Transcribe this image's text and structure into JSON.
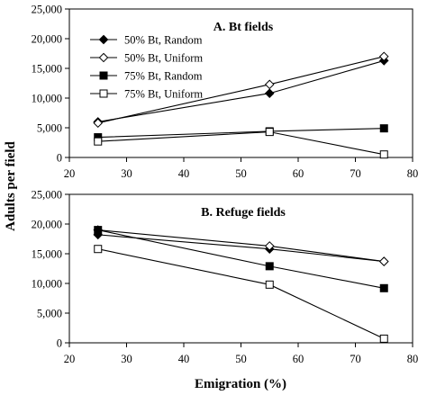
{
  "figure": {
    "ylabel": "Adults per field",
    "xlabel": "Emigration (%)"
  },
  "chart_data": [
    {
      "type": "line",
      "title": "A. Bt fields",
      "xlabel": "Emigration (%)",
      "ylabel": "Adults per field",
      "xlim": [
        20,
        80
      ],
      "ylim": [
        0,
        25000
      ],
      "x_ticks": [
        "20",
        "30",
        "40",
        "50",
        "60",
        "70",
        "80"
      ],
      "y_ticks": [
        "0",
        "5,000",
        "10,000",
        "15,000",
        "20,000",
        "25,000"
      ],
      "grid": false,
      "legend_position": "top-left",
      "x": [
        25,
        55,
        75
      ],
      "series": [
        {
          "name": "50% Bt, Random",
          "marker": "filled-diamond",
          "values": [
            6000,
            10800,
            16300
          ]
        },
        {
          "name": "50% Bt, Uniform",
          "marker": "open-diamond",
          "values": [
            5800,
            12300,
            17000
          ]
        },
        {
          "name": "75% Bt, Random",
          "marker": "filled-square",
          "values": [
            3400,
            4400,
            4900
          ]
        },
        {
          "name": "75% Bt, Uniform",
          "marker": "open-square",
          "values": [
            2700,
            4300,
            500
          ]
        }
      ]
    },
    {
      "type": "line",
      "title": "B. Refuge fields",
      "xlabel": "Emigration (%)",
      "ylabel": "Adults per field",
      "xlim": [
        20,
        80
      ],
      "ylim": [
        0,
        25000
      ],
      "x_ticks": [
        "20",
        "30",
        "40",
        "50",
        "60",
        "70",
        "80"
      ],
      "y_ticks": [
        "0",
        "5,000",
        "10,000",
        "15,000",
        "20,000",
        "25,000"
      ],
      "grid": false,
      "x": [
        25,
        55,
        75
      ],
      "series": [
        {
          "name": "50% Bt, Random",
          "marker": "filled-diamond",
          "values": [
            18200,
            15800,
            13700
          ]
        },
        {
          "name": "50% Bt, Uniform",
          "marker": "open-diamond",
          "values": [
            19000,
            16300,
            13700
          ]
        },
        {
          "name": "75% Bt, Random",
          "marker": "filled-square",
          "values": [
            19000,
            12900,
            9200
          ]
        },
        {
          "name": "75% Bt, Uniform",
          "marker": "open-square",
          "values": [
            15800,
            9800,
            700
          ]
        }
      ]
    }
  ]
}
